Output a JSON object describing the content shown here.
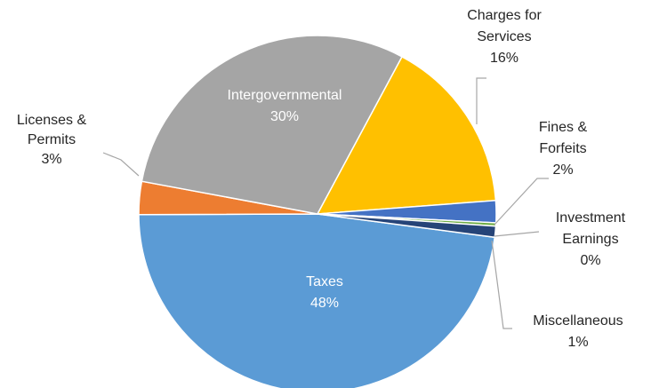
{
  "chart_data": {
    "type": "pie",
    "slices": [
      {
        "name": "Taxes",
        "value": 48,
        "label": "48%",
        "color": "#5b9bd5"
      },
      {
        "name": "Licenses &\nPermits",
        "value": 3,
        "label": "3%",
        "color": "#ed7d31"
      },
      {
        "name": "Intergovernmental",
        "value": 30,
        "label": "30%",
        "color": "#a5a5a5"
      },
      {
        "name": "Charges for\nServices",
        "value": 16,
        "label": "16%",
        "color": "#ffc000"
      },
      {
        "name": "Fines &\nForfeits",
        "value": 2,
        "label": "2%",
        "color": "#4472c4"
      },
      {
        "name": "Investment\nEarnings",
        "value": 0.3,
        "label": "0%",
        "color": "#70ad47"
      },
      {
        "name": "Miscellaneous",
        "value": 1,
        "label": "1%",
        "color": "#264478"
      }
    ]
  }
}
